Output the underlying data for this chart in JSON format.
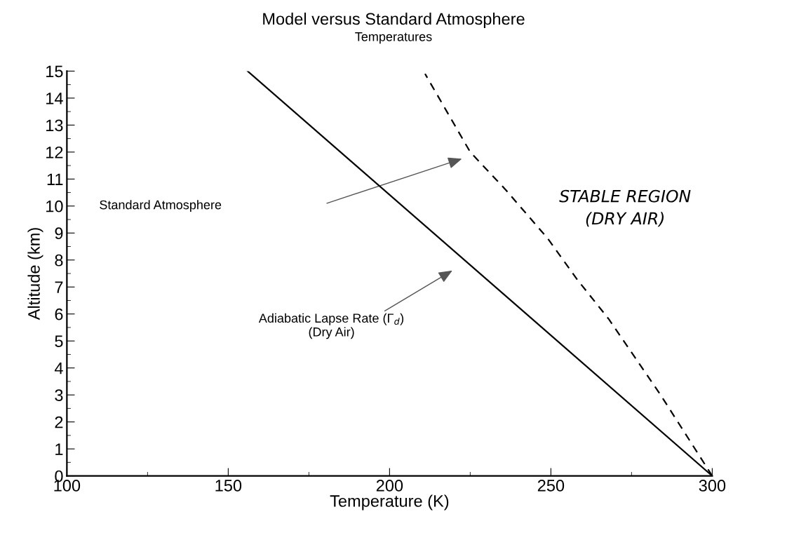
{
  "chart_data": {
    "type": "line",
    "title": "Model versus Standard Atmosphere",
    "subtitle": "Temperatures",
    "xlabel": "Temperature (K)",
    "ylabel": "Altitude (km)",
    "xlim": [
      100,
      300
    ],
    "xticks": [
      100,
      150,
      200,
      250,
      300
    ],
    "ylim": [
      0,
      15
    ],
    "yticks": [
      0,
      1,
      2,
      3,
      4,
      5,
      6,
      7,
      8,
      9,
      10,
      11,
      12,
      13,
      14,
      15
    ],
    "grid": false,
    "legend": false,
    "marker": "none",
    "series": [
      {
        "color": "#000000",
        "line_style": "solid",
        "x": [
          300,
          156
        ],
        "values": [
          0,
          15
        ]
      },
      {
        "color": "#000000",
        "line_style": "dashed",
        "x": [
          300,
          284,
          268,
          258,
          249,
          236,
          225,
          211
        ],
        "values": [
          0,
          3,
          5.8,
          7.3,
          8.8,
          10.6,
          12,
          14.9
        ]
      }
    ],
    "annotations": [
      "Standard Atmosphere",
      "Adiabatic Lapse Rate (Γ$_{d}$)\n(Dry Air)",
      "STABLE REGION\n(DRY AIR)"
    ]
  }
}
